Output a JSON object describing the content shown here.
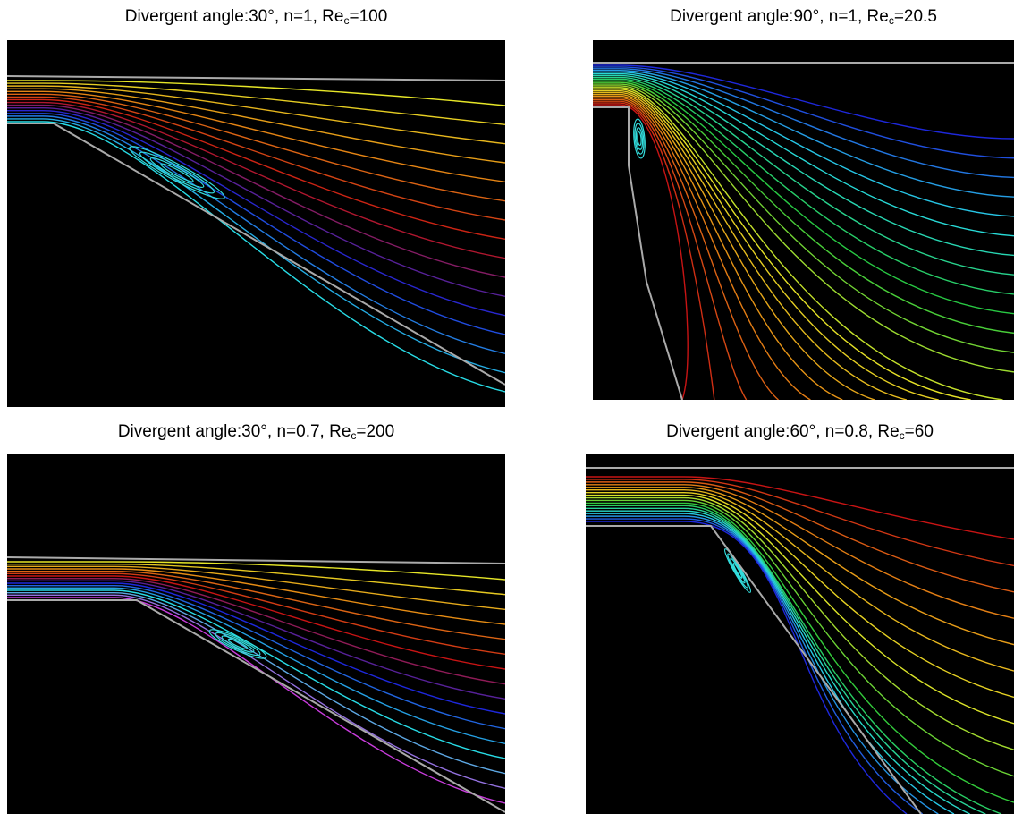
{
  "panels": [
    {
      "caption": {
        "text": "Divergent angle:30°, n=1, Re",
        "sub": "c",
        "value": "=100"
      }
    },
    {
      "caption": {
        "text": "Divergent angle:90°, n=1, Re",
        "sub": "c",
        "value": "=20.5"
      }
    },
    {
      "caption": {
        "text": "Divergent angle:30°, n=0.7, Re",
        "sub": "c",
        "value": "=200"
      }
    },
    {
      "caption": {
        "text": "Divergent angle:60°, n=0.8, Re",
        "sub": "c",
        "value": "=60"
      }
    }
  ]
}
